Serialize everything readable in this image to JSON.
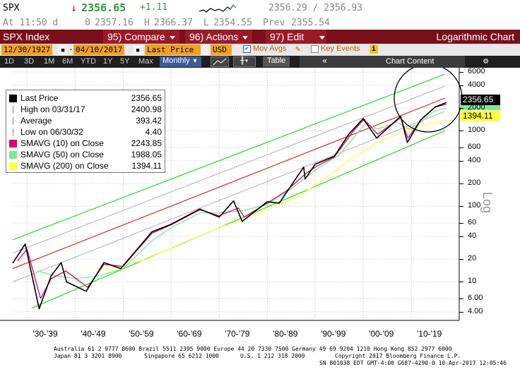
{
  "quote": {
    "ticker": "SPX",
    "arrow": "↓",
    "price": "2356.65",
    "change": "+1.11",
    "bid_ask": "2356.29 / 2356.93",
    "time_line": "At 11:50 d",
    "open_prefix": "0",
    "open": "2357.16",
    "high_prefix": "H",
    "high": "2366.37",
    "low_prefix": "L",
    "low": "2354.55",
    "prev_prefix": "Prev",
    "prev": "2355.54"
  },
  "toolbar": {
    "security": "SPX Index",
    "compare": "95) Compare",
    "actions": "96) Actions",
    "edit": "97) Edit",
    "chart_title": "Logarithmic Chart"
  },
  "settings": {
    "start_date": "12/30/1927",
    "end_date": "04/10/2017",
    "field": "Last Price",
    "currency": "USD",
    "mov_avgs": "Mov Avgs",
    "key_events": "Key Events",
    "info_icon": "i"
  },
  "periods": {
    "items": [
      "1D",
      "3D",
      "1M",
      "6M",
      "YTD",
      "1Y",
      "5Y",
      "Max"
    ],
    "frequency": "Monthly",
    "table": "Table",
    "chart_content": "Chart Content"
  },
  "legend": {
    "items": [
      {
        "label": "Last Price",
        "value": "2356.65",
        "color": "#000000"
      },
      {
        "label": "High on 03/31/17",
        "value": "2400.98",
        "color": "#888888"
      },
      {
        "label": "Average",
        "value": "393.42",
        "color": "#888888"
      },
      {
        "label": "Low on 06/30/32",
        "value": "4.40",
        "color": "#888888"
      },
      {
        "label": "SMAVG (10) on Close",
        "value": "2243.85",
        "color": "#e0006a"
      },
      {
        "label": "SMAVG (50) on Close",
        "value": "1988.05",
        "color": "#7ee89a"
      },
      {
        "label": "SMAVG (200) on Close",
        "value": "1394.11",
        "color": "#ffff40"
      }
    ]
  },
  "axis": {
    "y_ticks": [
      "6000",
      "4000",
      "2000",
      "1000",
      "600",
      "400",
      "200",
      "100",
      "60",
      "40",
      "20",
      "10",
      "6.00",
      "4.00"
    ],
    "x_ticks": [
      "'30-'39",
      "'40-'49",
      "'50-'59",
      "'60-'69",
      "'70-'79",
      "'80-'89",
      "'90-'99",
      "'00-'09",
      "'10-'19"
    ],
    "y_label": "Log",
    "last_price_tag": "2356.65",
    "sma200_tag": "1394.11"
  },
  "footer": {
    "line1": "Australia 61 2 9777 8600 Brazil 5511 2395 9000 Europe 44 20 7330 7500 Germany 49 69 9204 1210 Hong Kong 852 2977 6000",
    "line2a": "Japan 81 3 3201 8900",
    "line2b": "Singapore 65 6212 1000",
    "line2c": "U.S. 1 212 318 2000",
    "line2d": "Copyright 2017 Bloomberg Finance L.P.",
    "line3": "SN 801038 EDT  GMT-4:00 G687-4290-0 10-Apr-2017 12:05:46"
  },
  "chart_data": {
    "type": "line",
    "y_scale": "log",
    "ylim": [
      4,
      6000
    ],
    "x_range": [
      1927,
      2020
    ],
    "series": [
      {
        "name": "Last Price",
        "color": "#000000",
        "x": [
          1927,
          1929.6,
          1932.5,
          1935,
          1937.1,
          1938.2,
          1942.3,
          1946,
          1949.5,
          1956,
          1960,
          1966,
          1970,
          1973,
          1974.8,
          1980,
          1982.5,
          1987.6,
          1987.9,
          1990,
          1994,
          1997,
          2000,
          2002.8,
          2007.8,
          2009.2,
          2012,
          2015,
          2017.3
        ],
        "y": [
          17.7,
          31.7,
          4.4,
          12,
          18,
          10,
          7.5,
          18,
          15,
          46,
          58,
          92,
          72,
          118,
          63,
          115,
          110,
          330,
          230,
          360,
          460,
          900,
          1450,
          800,
          1550,
          700,
          1400,
          2070,
          2356.65
        ]
      },
      {
        "name": "SMAVG (10) on Close",
        "color": "#e0006a",
        "x": [
          1928,
          1930,
          1932.8,
          1935,
          1938,
          1942.6,
          1946,
          1950,
          1956,
          1960,
          1966,
          1970,
          1974,
          1975.2,
          1980,
          1984,
          1988,
          1990,
          1994,
          1998,
          2000.2,
          2003,
          2007.8,
          2009.3,
          2012,
          2015,
          2017.3
        ],
        "y": [
          19,
          27,
          6,
          11,
          14,
          8.5,
          17,
          16,
          44,
          57,
          90,
          75,
          95,
          72,
          110,
          160,
          270,
          330,
          450,
          1000,
          1420,
          900,
          1490,
          800,
          1380,
          2050,
          2243.85
        ]
      },
      {
        "name": "SMAVG (50) on Close",
        "color": "#7ee89a",
        "x": [
          1932,
          1936,
          1940,
          1945,
          1950,
          1956,
          1960,
          1966,
          1970,
          1975,
          1980,
          1985,
          1990,
          1995,
          2000.5,
          2003,
          2007,
          2009.5,
          2012,
          2015,
          2017.3
        ],
        "y": [
          14,
          12,
          11,
          12,
          15,
          35,
          52,
          82,
          82,
          88,
          105,
          170,
          300,
          480,
          1250,
          1050,
          1300,
          1050,
          1300,
          1850,
          1988.05
        ]
      },
      {
        "name": "SMAVG (200) on Close",
        "color": "#ffff40",
        "x": [
          1944,
          1948,
          1955,
          1962,
          1970,
          1978,
          1986,
          1992,
          1998,
          2003,
          2008,
          2012,
          2017.3
        ],
        "y": [
          15,
          15,
          20,
          32,
          52,
          80,
          130,
          230,
          450,
          700,
          950,
          1150,
          1394.11
        ]
      }
    ]
  }
}
